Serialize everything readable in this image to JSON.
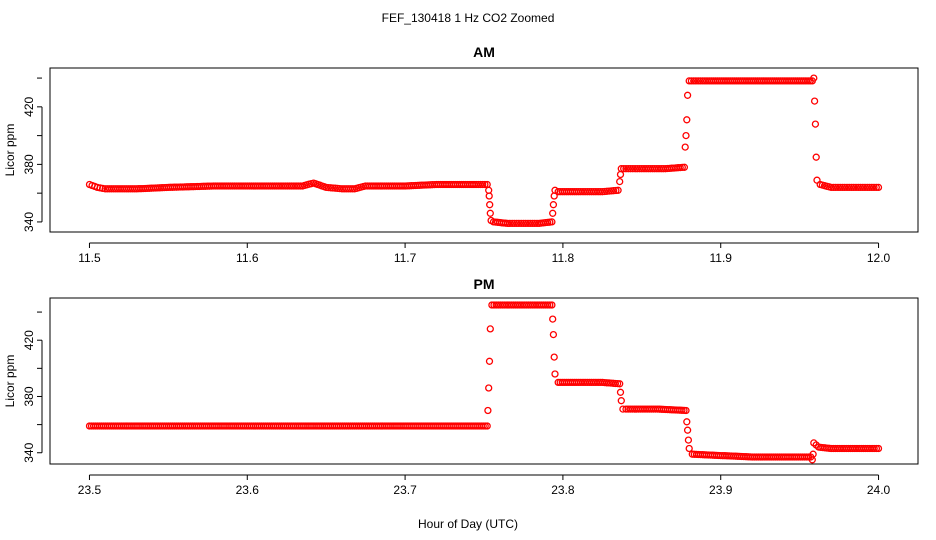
{
  "figure": {
    "title": "FEF_130418  1 Hz CO2 Zoomed",
    "xlabel": "Hour of Day (UTC)"
  },
  "chart_data": [
    {
      "type": "scatter",
      "title": "AM",
      "xlabel": "",
      "ylabel": "Licor ppm",
      "xlim": [
        11.475,
        12.025
      ],
      "ylim": [
        333,
        447
      ],
      "xticks": [
        11.5,
        11.6,
        11.7,
        11.8,
        11.9,
        12.0
      ],
      "xtick_labels": [
        "11.5",
        "11.6",
        "11.7",
        "11.8",
        "11.9",
        "12.0"
      ],
      "yticks": [
        340,
        380,
        420
      ],
      "ytick_labels": [
        "340",
        "380",
        "420"
      ],
      "grid": false,
      "color": "#ff0000",
      "marker": "open-circle",
      "series": [
        {
          "points": [
            [
              11.5,
              366
            ],
            [
              11.505,
              364
            ],
            [
              11.51,
              363
            ],
            [
              11.53,
              363
            ],
            [
              11.55,
              364
            ],
            [
              11.58,
              365
            ],
            [
              11.6,
              365
            ],
            [
              11.62,
              365
            ],
            [
              11.635,
              365
            ],
            [
              11.642,
              367
            ],
            [
              11.65,
              364
            ],
            [
              11.66,
              363
            ],
            [
              11.668,
              363
            ],
            [
              11.675,
              365
            ],
            [
              11.7,
              365
            ],
            [
              11.72,
              366
            ],
            [
              11.745,
              366
            ],
            [
              11.752,
              366
            ],
            [
              11.753,
              362
            ],
            [
              11.7533,
              358
            ],
            [
              11.7536,
              352
            ],
            [
              11.754,
              346
            ],
            [
              11.7545,
              341
            ],
            [
              11.756,
              340
            ],
            [
              11.765,
              339
            ],
            [
              11.775,
              339
            ],
            [
              11.785,
              339
            ],
            [
              11.793,
              340
            ],
            [
              11.7935,
              346
            ],
            [
              11.794,
              352
            ],
            [
              11.7945,
              358
            ],
            [
              11.795,
              362
            ],
            [
              11.797,
              361
            ],
            [
              11.81,
              361
            ],
            [
              11.825,
              361
            ],
            [
              11.835,
              362
            ],
            [
              11.836,
              368
            ],
            [
              11.8365,
              373
            ],
            [
              11.837,
              377
            ],
            [
              11.84,
              377
            ],
            [
              11.85,
              377
            ],
            [
              11.865,
              377
            ],
            [
              11.877,
              378
            ],
            [
              11.8775,
              392
            ],
            [
              11.878,
              400
            ],
            [
              11.8785,
              411
            ],
            [
              11.879,
              428
            ],
            [
              11.88,
              438
            ],
            [
              11.89,
              438
            ],
            [
              11.91,
              438
            ],
            [
              11.93,
              438
            ],
            [
              11.95,
              438
            ],
            [
              11.958,
              438
            ],
            [
              11.959,
              440
            ],
            [
              11.9595,
              424
            ],
            [
              11.96,
              408
            ],
            [
              11.9605,
              385
            ],
            [
              11.961,
              369
            ],
            [
              11.963,
              366
            ],
            [
              11.97,
              364
            ],
            [
              11.98,
              364
            ],
            [
              11.99,
              364
            ],
            [
              12.0,
              364
            ]
          ]
        }
      ]
    },
    {
      "type": "scatter",
      "title": "PM",
      "xlabel": "",
      "ylabel": "Licor ppm",
      "xlim": [
        23.475,
        24.025
      ],
      "ylim": [
        332,
        450
      ],
      "xticks": [
        23.5,
        23.6,
        23.7,
        23.8,
        23.9,
        24.0
      ],
      "xtick_labels": [
        "23.5",
        "23.6",
        "23.7",
        "23.8",
        "23.9",
        "24.0"
      ],
      "yticks": [
        340,
        380,
        420
      ],
      "ytick_labels": [
        "340",
        "380",
        "420"
      ],
      "grid": false,
      "color": "#ff0000",
      "marker": "open-circle",
      "series": [
        {
          "points": [
            [
              23.5,
              359
            ],
            [
              23.55,
              359
            ],
            [
              23.6,
              359
            ],
            [
              23.65,
              359
            ],
            [
              23.7,
              359
            ],
            [
              23.752,
              359
            ],
            [
              23.7525,
              370
            ],
            [
              23.753,
              386
            ],
            [
              23.7535,
              405
            ],
            [
              23.754,
              428
            ],
            [
              23.755,
              445
            ],
            [
              23.77,
              445
            ],
            [
              23.785,
              445
            ],
            [
              23.793,
              445
            ],
            [
              23.7935,
              435
            ],
            [
              23.794,
              424
            ],
            [
              23.7945,
              408
            ],
            [
              23.795,
              396
            ],
            [
              23.797,
              390
            ],
            [
              23.81,
              390
            ],
            [
              23.825,
              390
            ],
            [
              23.836,
              389
            ],
            [
              23.8365,
              383
            ],
            [
              23.837,
              377
            ],
            [
              23.838,
              371
            ],
            [
              23.84,
              371
            ],
            [
              23.86,
              371
            ],
            [
              23.878,
              370
            ],
            [
              23.8785,
              362
            ],
            [
              23.879,
              356
            ],
            [
              23.8795,
              349
            ],
            [
              23.88,
              343
            ],
            [
              23.882,
              339
            ],
            [
              23.9,
              338
            ],
            [
              23.92,
              337
            ],
            [
              23.94,
              337
            ],
            [
              23.957,
              337
            ],
            [
              23.958,
              335
            ],
            [
              23.9585,
              339
            ],
            [
              23.959,
              347
            ],
            [
              23.962,
              344
            ],
            [
              23.97,
              343
            ],
            [
              23.985,
              343
            ],
            [
              24.0,
              343
            ]
          ]
        }
      ]
    }
  ]
}
